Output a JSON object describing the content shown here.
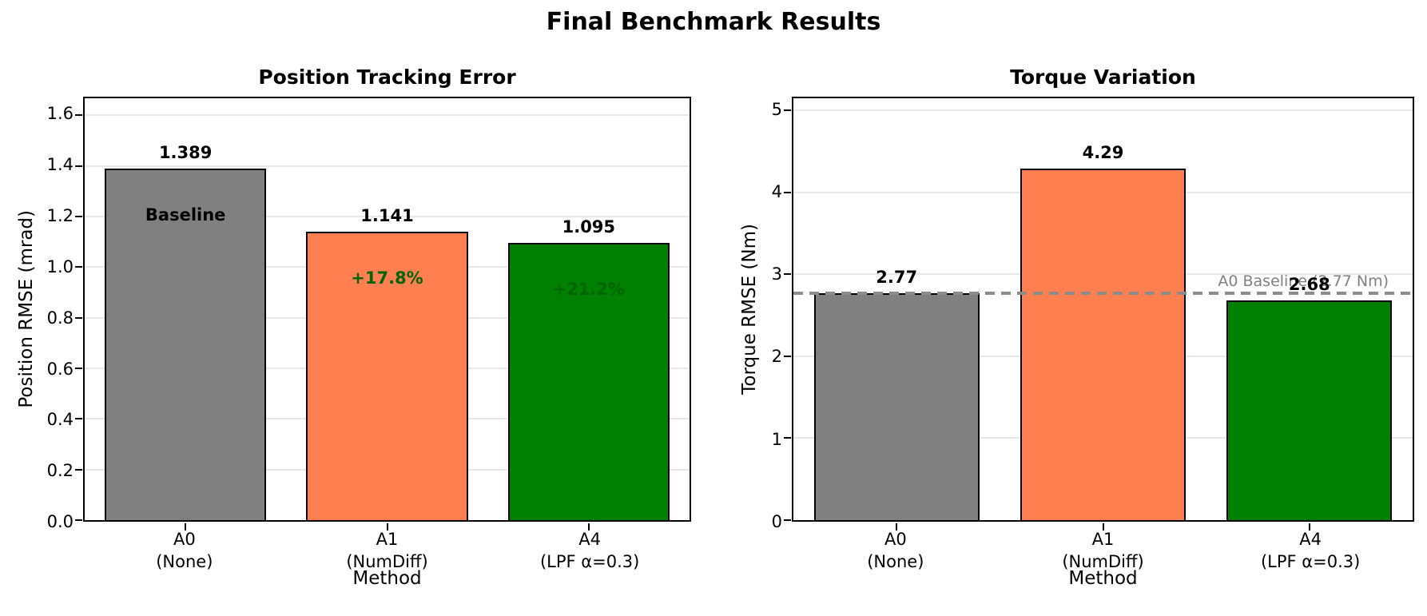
{
  "figure": {
    "suptitle": "Final Benchmark Results"
  },
  "colors": {
    "bar_gray": "#808080",
    "bar_coral": "#ff7f50",
    "bar_green": "#008000",
    "bar_edge": "#000000",
    "annotation_green": "#006400",
    "annotation_black": "#000000",
    "grid": "#e8e8e8",
    "reference_line": "#8c8c8c",
    "reference_text": "#808080"
  },
  "chart_data": [
    {
      "type": "bar",
      "title": "Position Tracking Error",
      "xlabel": "Method",
      "ylabel": "Position RMSE (mrad)",
      "categories": [
        "A0",
        "A1",
        "A4"
      ],
      "category_sublabels": [
        "(None)",
        "(NumDiff)",
        "(LPF α=0.3)"
      ],
      "values": [
        1.389,
        1.141,
        1.095
      ],
      "value_labels": [
        "1.389",
        "1.141",
        "1.095"
      ],
      "bar_colors": [
        "#808080",
        "#ff7f50",
        "#008000"
      ],
      "ylim": [
        0,
        1.667
      ],
      "yticks": [
        "0.0",
        "0.2",
        "0.4",
        "0.6",
        "0.8",
        "1.0",
        "1.2",
        "1.4",
        "1.6"
      ],
      "grid": true,
      "annotations": [
        {
          "bar": 0,
          "text": "Baseline",
          "color": "#000000"
        },
        {
          "bar": 1,
          "text": "+17.8%",
          "color": "#006400"
        },
        {
          "bar": 2,
          "text": "+21.2%",
          "color": "#006400"
        }
      ]
    },
    {
      "type": "bar",
      "title": "Torque Variation",
      "xlabel": "Method",
      "ylabel": "Torque RMSE (Nm)",
      "categories": [
        "A0",
        "A1",
        "A4"
      ],
      "category_sublabels": [
        "(None)",
        "(NumDiff)",
        "(LPF α=0.3)"
      ],
      "values": [
        2.77,
        4.29,
        2.68
      ],
      "value_labels": [
        "2.77",
        "4.29",
        "2.68"
      ],
      "bar_colors": [
        "#808080",
        "#ff7f50",
        "#008000"
      ],
      "ylim": [
        0,
        5.15
      ],
      "yticks": [
        "0",
        "1",
        "2",
        "3",
        "4",
        "5"
      ],
      "grid": true,
      "reference_line": {
        "value": 2.77,
        "label": "A0 Baseline (2.77 Nm)",
        "color": "#8c8c8c",
        "style": "dashed",
        "label_color": "#808080"
      },
      "annotations": []
    }
  ]
}
